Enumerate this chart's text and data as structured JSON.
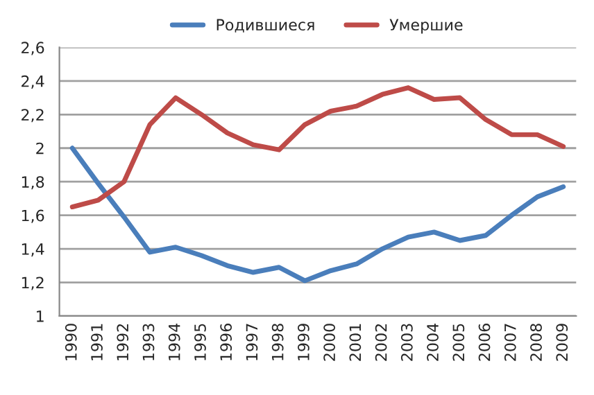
{
  "chart_data": {
    "type": "line",
    "categories": [
      "1990",
      "1991",
      "1992",
      "1993",
      "1994",
      "1995",
      "1996",
      "1997",
      "1998",
      "1999",
      "2000",
      "2001",
      "2002",
      "2003",
      "2004",
      "2005",
      "2006",
      "2007",
      "2008",
      "2009"
    ],
    "series": [
      {
        "name": "Родившиеся",
        "color": "#4a7ebb",
        "values": [
          2.0,
          1.79,
          1.59,
          1.38,
          1.41,
          1.36,
          1.3,
          1.26,
          1.29,
          1.21,
          1.27,
          1.31,
          1.4,
          1.47,
          1.5,
          1.45,
          1.48,
          1.6,
          1.71,
          1.77
        ]
      },
      {
        "name": "Умершие",
        "color": "#be4b48",
        "values": [
          1.65,
          1.69,
          1.8,
          2.14,
          2.3,
          2.2,
          2.09,
          2.02,
          1.99,
          2.14,
          2.22,
          2.25,
          2.32,
          2.36,
          2.29,
          2.3,
          2.17,
          2.08,
          2.08,
          2.01
        ]
      }
    ],
    "ylim": [
      1,
      2.6
    ],
    "yticks": [
      {
        "value": 1,
        "label": "1"
      },
      {
        "value": 1.2,
        "label": "1,2"
      },
      {
        "value": 1.4,
        "label": "1,4"
      },
      {
        "value": 1.6,
        "label": "1,6"
      },
      {
        "value": 1.8,
        "label": "1,8"
      },
      {
        "value": 2,
        "label": "2"
      },
      {
        "value": 2.2,
        "label": "2,2"
      },
      {
        "value": 2.4,
        "label": "2,4"
      },
      {
        "value": 2.6,
        "label": "2,6"
      }
    ],
    "grid": "y",
    "legend": "top",
    "marker": "none",
    "line_style": "solid"
  }
}
